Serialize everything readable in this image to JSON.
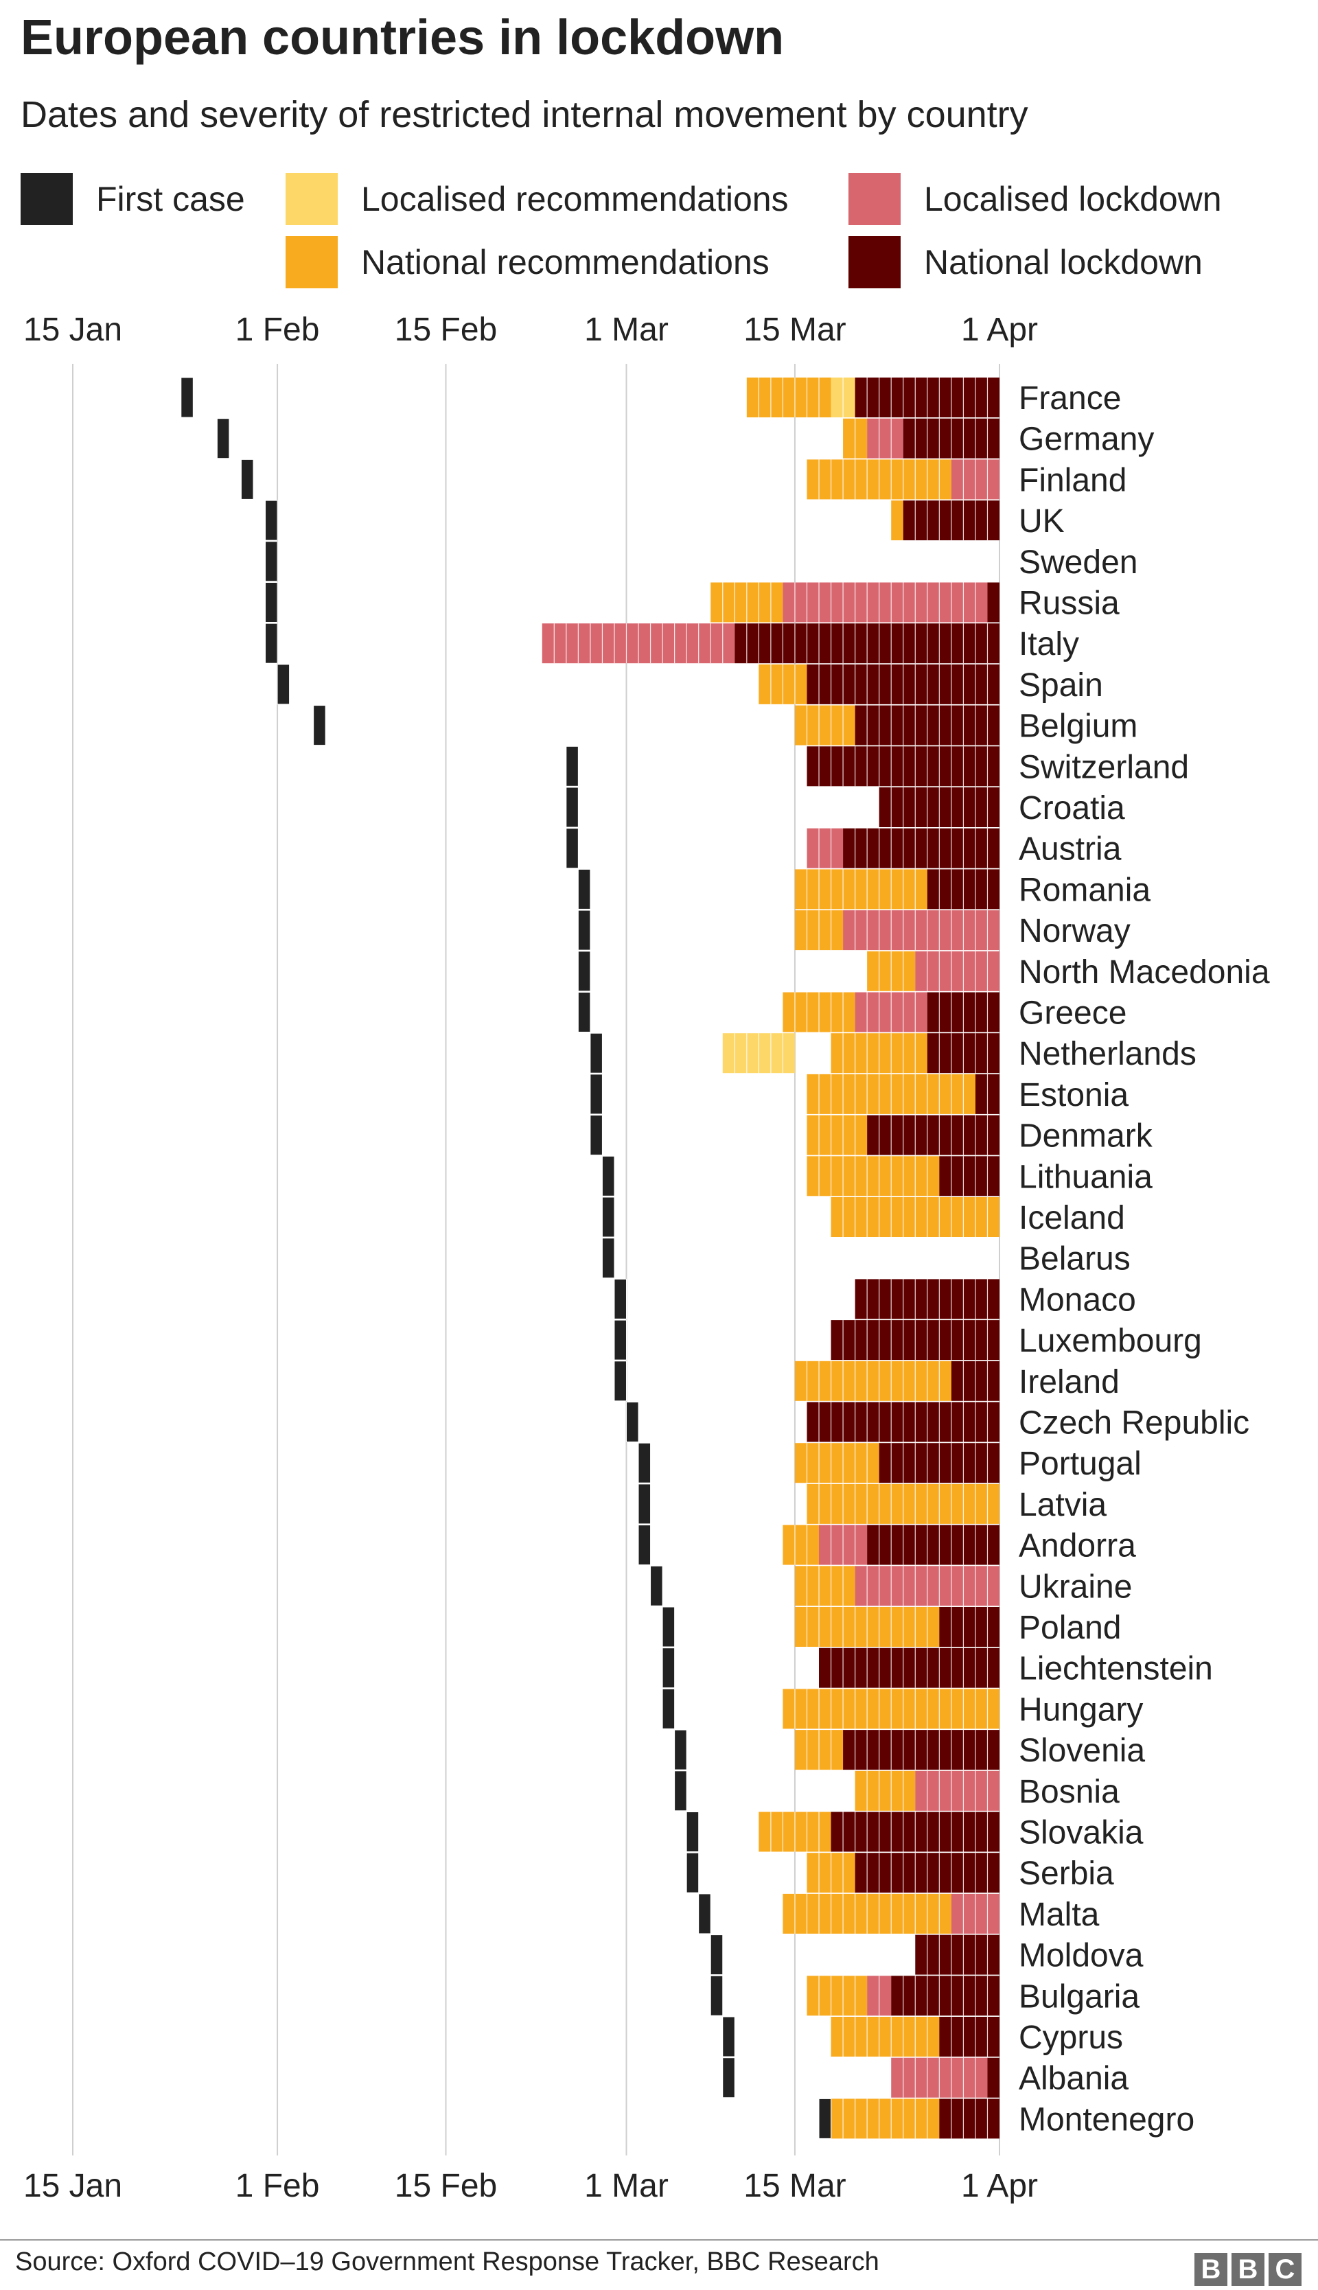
{
  "chart_data": {
    "type": "timeline",
    "title": "European countries in lockdown",
    "subtitle": "Dates and severity of restricted internal movement by country",
    "source": "Source: Oxford COVID–19 Government Response Tracker, BBC Research",
    "brand": "BBC",
    "x_range": [
      "2020-01-15",
      "2020-04-01"
    ],
    "x_ticks": [
      "15 Jan",
      "1 Feb",
      "15 Feb",
      "1 Mar",
      "15 Mar",
      "1 Apr"
    ],
    "legend": [
      {
        "key": "first",
        "label": "First case",
        "color": "#222222"
      },
      {
        "key": "lrec",
        "label": "Localised recommendations",
        "color": "#fdd767"
      },
      {
        "key": "lloc",
        "label": "Localised lockdown",
        "color": "#d8666f"
      },
      {
        "key": "nrec",
        "label": "National recommendations",
        "color": "#f9ab20"
      },
      {
        "key": "nloc",
        "label": "National lockdown",
        "color": "#5f0000"
      }
    ],
    "countries": [
      {
        "name": "France",
        "first_case": "2020-01-24",
        "periods": [
          {
            "level": "nrec",
            "start": "2020-03-11",
            "end": "2020-03-18"
          },
          {
            "level": "lrec",
            "start": "2020-03-18",
            "end": "2020-03-20"
          },
          {
            "level": "nloc",
            "start": "2020-03-20",
            "end": "2020-04-01"
          }
        ]
      },
      {
        "name": "Germany",
        "first_case": "2020-01-27",
        "periods": [
          {
            "level": "nrec",
            "start": "2020-03-19",
            "end": "2020-03-21"
          },
          {
            "level": "lloc",
            "start": "2020-03-21",
            "end": "2020-03-24"
          },
          {
            "level": "nloc",
            "start": "2020-03-24",
            "end": "2020-04-01"
          }
        ]
      },
      {
        "name": "Finland",
        "first_case": "2020-01-29",
        "periods": [
          {
            "level": "nrec",
            "start": "2020-03-16",
            "end": "2020-03-28"
          },
          {
            "level": "lloc",
            "start": "2020-03-28",
            "end": "2020-04-01"
          }
        ]
      },
      {
        "name": "UK",
        "first_case": "2020-01-31",
        "periods": [
          {
            "level": "nrec",
            "start": "2020-03-23",
            "end": "2020-03-24"
          },
          {
            "level": "nloc",
            "start": "2020-03-24",
            "end": "2020-04-01"
          }
        ]
      },
      {
        "name": "Sweden",
        "first_case": "2020-01-31",
        "periods": []
      },
      {
        "name": "Russia",
        "first_case": "2020-01-31",
        "periods": [
          {
            "level": "nrec",
            "start": "2020-03-08",
            "end": "2020-03-14"
          },
          {
            "level": "lloc",
            "start": "2020-03-14",
            "end": "2020-03-31"
          },
          {
            "level": "nloc",
            "start": "2020-03-31",
            "end": "2020-04-01"
          }
        ]
      },
      {
        "name": "Italy",
        "first_case": "2020-01-31",
        "periods": [
          {
            "level": "lloc",
            "start": "2020-02-23",
            "end": "2020-03-10"
          },
          {
            "level": "nloc",
            "start": "2020-03-10",
            "end": "2020-04-01"
          }
        ]
      },
      {
        "name": "Spain",
        "first_case": "2020-02-01",
        "periods": [
          {
            "level": "nrec",
            "start": "2020-03-12",
            "end": "2020-03-16"
          },
          {
            "level": "nloc",
            "start": "2020-03-16",
            "end": "2020-04-01"
          }
        ]
      },
      {
        "name": "Belgium",
        "first_case": "2020-02-04",
        "periods": [
          {
            "level": "nrec",
            "start": "2020-03-15",
            "end": "2020-03-20"
          },
          {
            "level": "nloc",
            "start": "2020-03-20",
            "end": "2020-04-01"
          }
        ]
      },
      {
        "name": "Switzerland",
        "first_case": "2020-02-25",
        "periods": [
          {
            "level": "nloc",
            "start": "2020-03-16",
            "end": "2020-04-01"
          }
        ]
      },
      {
        "name": "Croatia",
        "first_case": "2020-02-25",
        "periods": [
          {
            "level": "nloc",
            "start": "2020-03-22",
            "end": "2020-04-01"
          }
        ]
      },
      {
        "name": "Austria",
        "first_case": "2020-02-25",
        "periods": [
          {
            "level": "lloc",
            "start": "2020-03-16",
            "end": "2020-03-19"
          },
          {
            "level": "nloc",
            "start": "2020-03-19",
            "end": "2020-04-01"
          }
        ]
      },
      {
        "name": "Romania",
        "first_case": "2020-02-26",
        "periods": [
          {
            "level": "nrec",
            "start": "2020-03-15",
            "end": "2020-03-26"
          },
          {
            "level": "nloc",
            "start": "2020-03-26",
            "end": "2020-04-01"
          }
        ]
      },
      {
        "name": "Norway",
        "first_case": "2020-02-26",
        "periods": [
          {
            "level": "nrec",
            "start": "2020-03-15",
            "end": "2020-03-19"
          },
          {
            "level": "lloc",
            "start": "2020-03-19",
            "end": "2020-04-01"
          }
        ]
      },
      {
        "name": "North Macedonia",
        "first_case": "2020-02-26",
        "periods": [
          {
            "level": "nrec",
            "start": "2020-03-21",
            "end": "2020-03-25"
          },
          {
            "level": "lloc",
            "start": "2020-03-25",
            "end": "2020-04-01"
          }
        ]
      },
      {
        "name": "Greece",
        "first_case": "2020-02-26",
        "periods": [
          {
            "level": "nrec",
            "start": "2020-03-14",
            "end": "2020-03-20"
          },
          {
            "level": "lloc",
            "start": "2020-03-20",
            "end": "2020-03-26"
          },
          {
            "level": "nloc",
            "start": "2020-03-26",
            "end": "2020-04-01"
          }
        ]
      },
      {
        "name": "Netherlands",
        "first_case": "2020-02-27",
        "periods": [
          {
            "level": "lrec",
            "start": "2020-03-09",
            "end": "2020-03-15"
          },
          {
            "level": "nrec",
            "start": "2020-03-18",
            "end": "2020-03-26"
          },
          {
            "level": "nloc",
            "start": "2020-03-26",
            "end": "2020-04-01"
          }
        ]
      },
      {
        "name": "Estonia",
        "first_case": "2020-02-27",
        "periods": [
          {
            "level": "nrec",
            "start": "2020-03-16",
            "end": "2020-03-30"
          },
          {
            "level": "nloc",
            "start": "2020-03-30",
            "end": "2020-04-01"
          }
        ]
      },
      {
        "name": "Denmark",
        "first_case": "2020-02-27",
        "periods": [
          {
            "level": "nrec",
            "start": "2020-03-16",
            "end": "2020-03-21"
          },
          {
            "level": "nloc",
            "start": "2020-03-21",
            "end": "2020-04-01"
          }
        ]
      },
      {
        "name": "Lithuania",
        "first_case": "2020-02-28",
        "periods": [
          {
            "level": "nrec",
            "start": "2020-03-16",
            "end": "2020-03-27"
          },
          {
            "level": "nloc",
            "start": "2020-03-27",
            "end": "2020-04-01"
          }
        ]
      },
      {
        "name": "Iceland",
        "first_case": "2020-02-28",
        "periods": [
          {
            "level": "nrec",
            "start": "2020-03-18",
            "end": "2020-04-01"
          }
        ]
      },
      {
        "name": "Belarus",
        "first_case": "2020-02-28",
        "periods": []
      },
      {
        "name": "Monaco",
        "first_case": "2020-02-29",
        "periods": [
          {
            "level": "nloc",
            "start": "2020-03-20",
            "end": "2020-04-01"
          }
        ]
      },
      {
        "name": "Luxembourg",
        "first_case": "2020-02-29",
        "periods": [
          {
            "level": "nloc",
            "start": "2020-03-18",
            "end": "2020-04-01"
          }
        ]
      },
      {
        "name": "Ireland",
        "first_case": "2020-02-29",
        "periods": [
          {
            "level": "nrec",
            "start": "2020-03-15",
            "end": "2020-03-28"
          },
          {
            "level": "nloc",
            "start": "2020-03-28",
            "end": "2020-04-01"
          }
        ]
      },
      {
        "name": "Czech Republic",
        "first_case": "2020-03-01",
        "periods": [
          {
            "level": "nloc",
            "start": "2020-03-16",
            "end": "2020-04-01"
          }
        ]
      },
      {
        "name": "Portugal",
        "first_case": "2020-03-02",
        "periods": [
          {
            "level": "nrec",
            "start": "2020-03-15",
            "end": "2020-03-22"
          },
          {
            "level": "nloc",
            "start": "2020-03-22",
            "end": "2020-04-01"
          }
        ]
      },
      {
        "name": "Latvia",
        "first_case": "2020-03-02",
        "periods": [
          {
            "level": "nrec",
            "start": "2020-03-16",
            "end": "2020-04-01"
          }
        ]
      },
      {
        "name": "Andorra",
        "first_case": "2020-03-02",
        "periods": [
          {
            "level": "nrec",
            "start": "2020-03-14",
            "end": "2020-03-17"
          },
          {
            "level": "lloc",
            "start": "2020-03-17",
            "end": "2020-03-21"
          },
          {
            "level": "nloc",
            "start": "2020-03-21",
            "end": "2020-04-01"
          }
        ]
      },
      {
        "name": "Ukraine",
        "first_case": "2020-03-03",
        "periods": [
          {
            "level": "nrec",
            "start": "2020-03-15",
            "end": "2020-03-20"
          },
          {
            "level": "lloc",
            "start": "2020-03-20",
            "end": "2020-04-01"
          }
        ]
      },
      {
        "name": "Poland",
        "first_case": "2020-03-04",
        "periods": [
          {
            "level": "nrec",
            "start": "2020-03-15",
            "end": "2020-03-27"
          },
          {
            "level": "nloc",
            "start": "2020-03-27",
            "end": "2020-04-01"
          }
        ]
      },
      {
        "name": "Liechtenstein",
        "first_case": "2020-03-04",
        "periods": [
          {
            "level": "nloc",
            "start": "2020-03-17",
            "end": "2020-04-01"
          }
        ]
      },
      {
        "name": "Hungary",
        "first_case": "2020-03-04",
        "periods": [
          {
            "level": "nrec",
            "start": "2020-03-14",
            "end": "2020-04-01"
          }
        ]
      },
      {
        "name": "Slovenia",
        "first_case": "2020-03-05",
        "periods": [
          {
            "level": "nrec",
            "start": "2020-03-15",
            "end": "2020-03-19"
          },
          {
            "level": "nloc",
            "start": "2020-03-19",
            "end": "2020-04-01"
          }
        ]
      },
      {
        "name": "Bosnia",
        "first_case": "2020-03-05",
        "periods": [
          {
            "level": "nrec",
            "start": "2020-03-20",
            "end": "2020-03-25"
          },
          {
            "level": "lloc",
            "start": "2020-03-25",
            "end": "2020-04-01"
          }
        ]
      },
      {
        "name": "Slovakia",
        "first_case": "2020-03-06",
        "periods": [
          {
            "level": "nrec",
            "start": "2020-03-12",
            "end": "2020-03-18"
          },
          {
            "level": "nloc",
            "start": "2020-03-18",
            "end": "2020-04-01"
          }
        ]
      },
      {
        "name": "Serbia",
        "first_case": "2020-03-06",
        "periods": [
          {
            "level": "nrec",
            "start": "2020-03-16",
            "end": "2020-03-20"
          },
          {
            "level": "nloc",
            "start": "2020-03-20",
            "end": "2020-04-01"
          }
        ]
      },
      {
        "name": "Malta",
        "first_case": "2020-03-07",
        "periods": [
          {
            "level": "nrec",
            "start": "2020-03-14",
            "end": "2020-03-28"
          },
          {
            "level": "lloc",
            "start": "2020-03-28",
            "end": "2020-04-01"
          }
        ]
      },
      {
        "name": "Moldova",
        "first_case": "2020-03-08",
        "periods": [
          {
            "level": "nloc",
            "start": "2020-03-25",
            "end": "2020-04-01"
          }
        ]
      },
      {
        "name": "Bulgaria",
        "first_case": "2020-03-08",
        "periods": [
          {
            "level": "nrec",
            "start": "2020-03-16",
            "end": "2020-03-21"
          },
          {
            "level": "lloc",
            "start": "2020-03-21",
            "end": "2020-03-23"
          },
          {
            "level": "nloc",
            "start": "2020-03-23",
            "end": "2020-04-01"
          }
        ]
      },
      {
        "name": "Cyprus",
        "first_case": "2020-03-09",
        "periods": [
          {
            "level": "nrec",
            "start": "2020-03-18",
            "end": "2020-03-27"
          },
          {
            "level": "nloc",
            "start": "2020-03-27",
            "end": "2020-04-01"
          }
        ]
      },
      {
        "name": "Albania",
        "first_case": "2020-03-09",
        "periods": [
          {
            "level": "lloc",
            "start": "2020-03-23",
            "end": "2020-03-31"
          },
          {
            "level": "nloc",
            "start": "2020-03-31",
            "end": "2020-04-01"
          }
        ]
      },
      {
        "name": "Montenegro",
        "first_case": "2020-03-17",
        "periods": [
          {
            "level": "nrec",
            "start": "2020-03-17",
            "end": "2020-03-27"
          },
          {
            "level": "nloc",
            "start": "2020-03-27",
            "end": "2020-04-01"
          }
        ]
      }
    ]
  }
}
